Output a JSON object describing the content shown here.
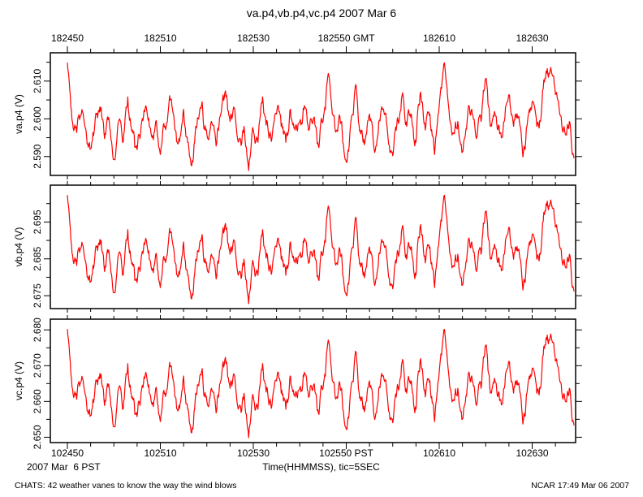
{
  "title": "va.p4,vb.p4,vc.p4 2007 Mar 6",
  "footer": {
    "left": "CHATS: 42 weather vanes to know the way the wind blows",
    "right": "NCAR 17:49 Mar 06 2007"
  },
  "colors": {
    "trace": "#ff0000",
    "axis": "#000000",
    "background": "#ffffff"
  },
  "chart_data": {
    "type": "line",
    "title": "va.p4,vb.p4,vc.p4 2007 Mar 6",
    "grid": false,
    "legend": false,
    "x_axis": {
      "xlabel": "Time(HHMMSS), tic=5SEC",
      "date_label": "2007 Mar  6 PST",
      "major_tick_seconds": [
        0,
        20,
        40,
        60,
        80,
        100
      ],
      "top_tick_labels": [
        "182450",
        "182510",
        "182530",
        "182550 GMT",
        "182610",
        "182630"
      ],
      "bottom_tick_labels": [
        "102450",
        "102510",
        "102530",
        "102550 PST",
        "102610",
        "102630"
      ],
      "minor_tick_step_seconds": 5,
      "minor_tick_range_seconds": [
        5,
        105
      ],
      "data_t_range_seconds": [
        0,
        109
      ]
    },
    "panels": [
      {
        "id": "va",
        "ylabel": "va.p4 (V)",
        "ylim": [
          2.585,
          2.6175
        ],
        "yticks_major": [
          2.59,
          2.6,
          2.61
        ],
        "ytick_labels": [
          "2.590",
          "2.600",
          "2.610"
        ],
        "yticks_minor": [
          2.595,
          2.605,
          2.615
        ]
      },
      {
        "id": "vb",
        "ylabel": "vb.p4 (V)",
        "ylim": [
          2.6715,
          2.705
        ],
        "yticks_major": [
          2.675,
          2.685,
          2.695
        ],
        "ytick_labels": [
          "2.675",
          "2.685",
          "2.695"
        ],
        "yticks_minor": [
          2.68,
          2.69,
          2.7
        ]
      },
      {
        "id": "vc",
        "ylabel": "vc.p4 (V)",
        "ylim": [
          2.6485,
          2.683
        ],
        "yticks_major": [
          2.65,
          2.66,
          2.67,
          2.68
        ],
        "ytick_labels": [
          "2.650",
          "2.660",
          "2.670",
          "2.680"
        ],
        "yticks_minor": [
          2.655,
          2.665,
          2.675
        ]
      }
    ],
    "shape_mapping": "All three panels show the same turbulence signal; value = ylim[0] + s * (ylim[1] - ylim[0]) for each normalized sample s below, sampled at 1 s intervals starting 182450 GMT / 102450 PST.",
    "sample_interval_seconds": 1,
    "shape_normalized": [
      0.92,
      0.45,
      0.35,
      0.5,
      0.37,
      0.22,
      0.47,
      0.56,
      0.3,
      0.44,
      0.13,
      0.44,
      0.27,
      0.64,
      0.37,
      0.21,
      0.44,
      0.55,
      0.34,
      0.44,
      0.17,
      0.4,
      0.65,
      0.44,
      0.3,
      0.54,
      0.27,
      0.11,
      0.47,
      0.6,
      0.34,
      0.44,
      0.24,
      0.5,
      0.69,
      0.44,
      0.54,
      0.3,
      0.4,
      0.04,
      0.37,
      0.27,
      0.64,
      0.44,
      0.3,
      0.5,
      0.4,
      0.27,
      0.54,
      0.37,
      0.44,
      0.57,
      0.37,
      0.47,
      0.24,
      0.44,
      0.8,
      0.5,
      0.37,
      0.44,
      0.11,
      0.44,
      0.74,
      0.37,
      0.27,
      0.5,
      0.21,
      0.44,
      0.54,
      0.3,
      0.16,
      0.47,
      0.65,
      0.4,
      0.5,
      0.27,
      0.68,
      0.37,
      0.5,
      0.17,
      0.57,
      0.91,
      0.57,
      0.34,
      0.44,
      0.19,
      0.44,
      0.54,
      0.3,
      0.44,
      0.79,
      0.4,
      0.5,
      0.34,
      0.44,
      0.66,
      0.4,
      0.47,
      0.15,
      0.44,
      0.6,
      0.4,
      0.52,
      0.85,
      0.88,
      0.66,
      0.49,
      0.36,
      0.44,
      0.14
    ],
    "noise": {
      "seed": 42,
      "amplitudes": [
        0.1,
        0.06,
        0.035
      ]
    }
  }
}
